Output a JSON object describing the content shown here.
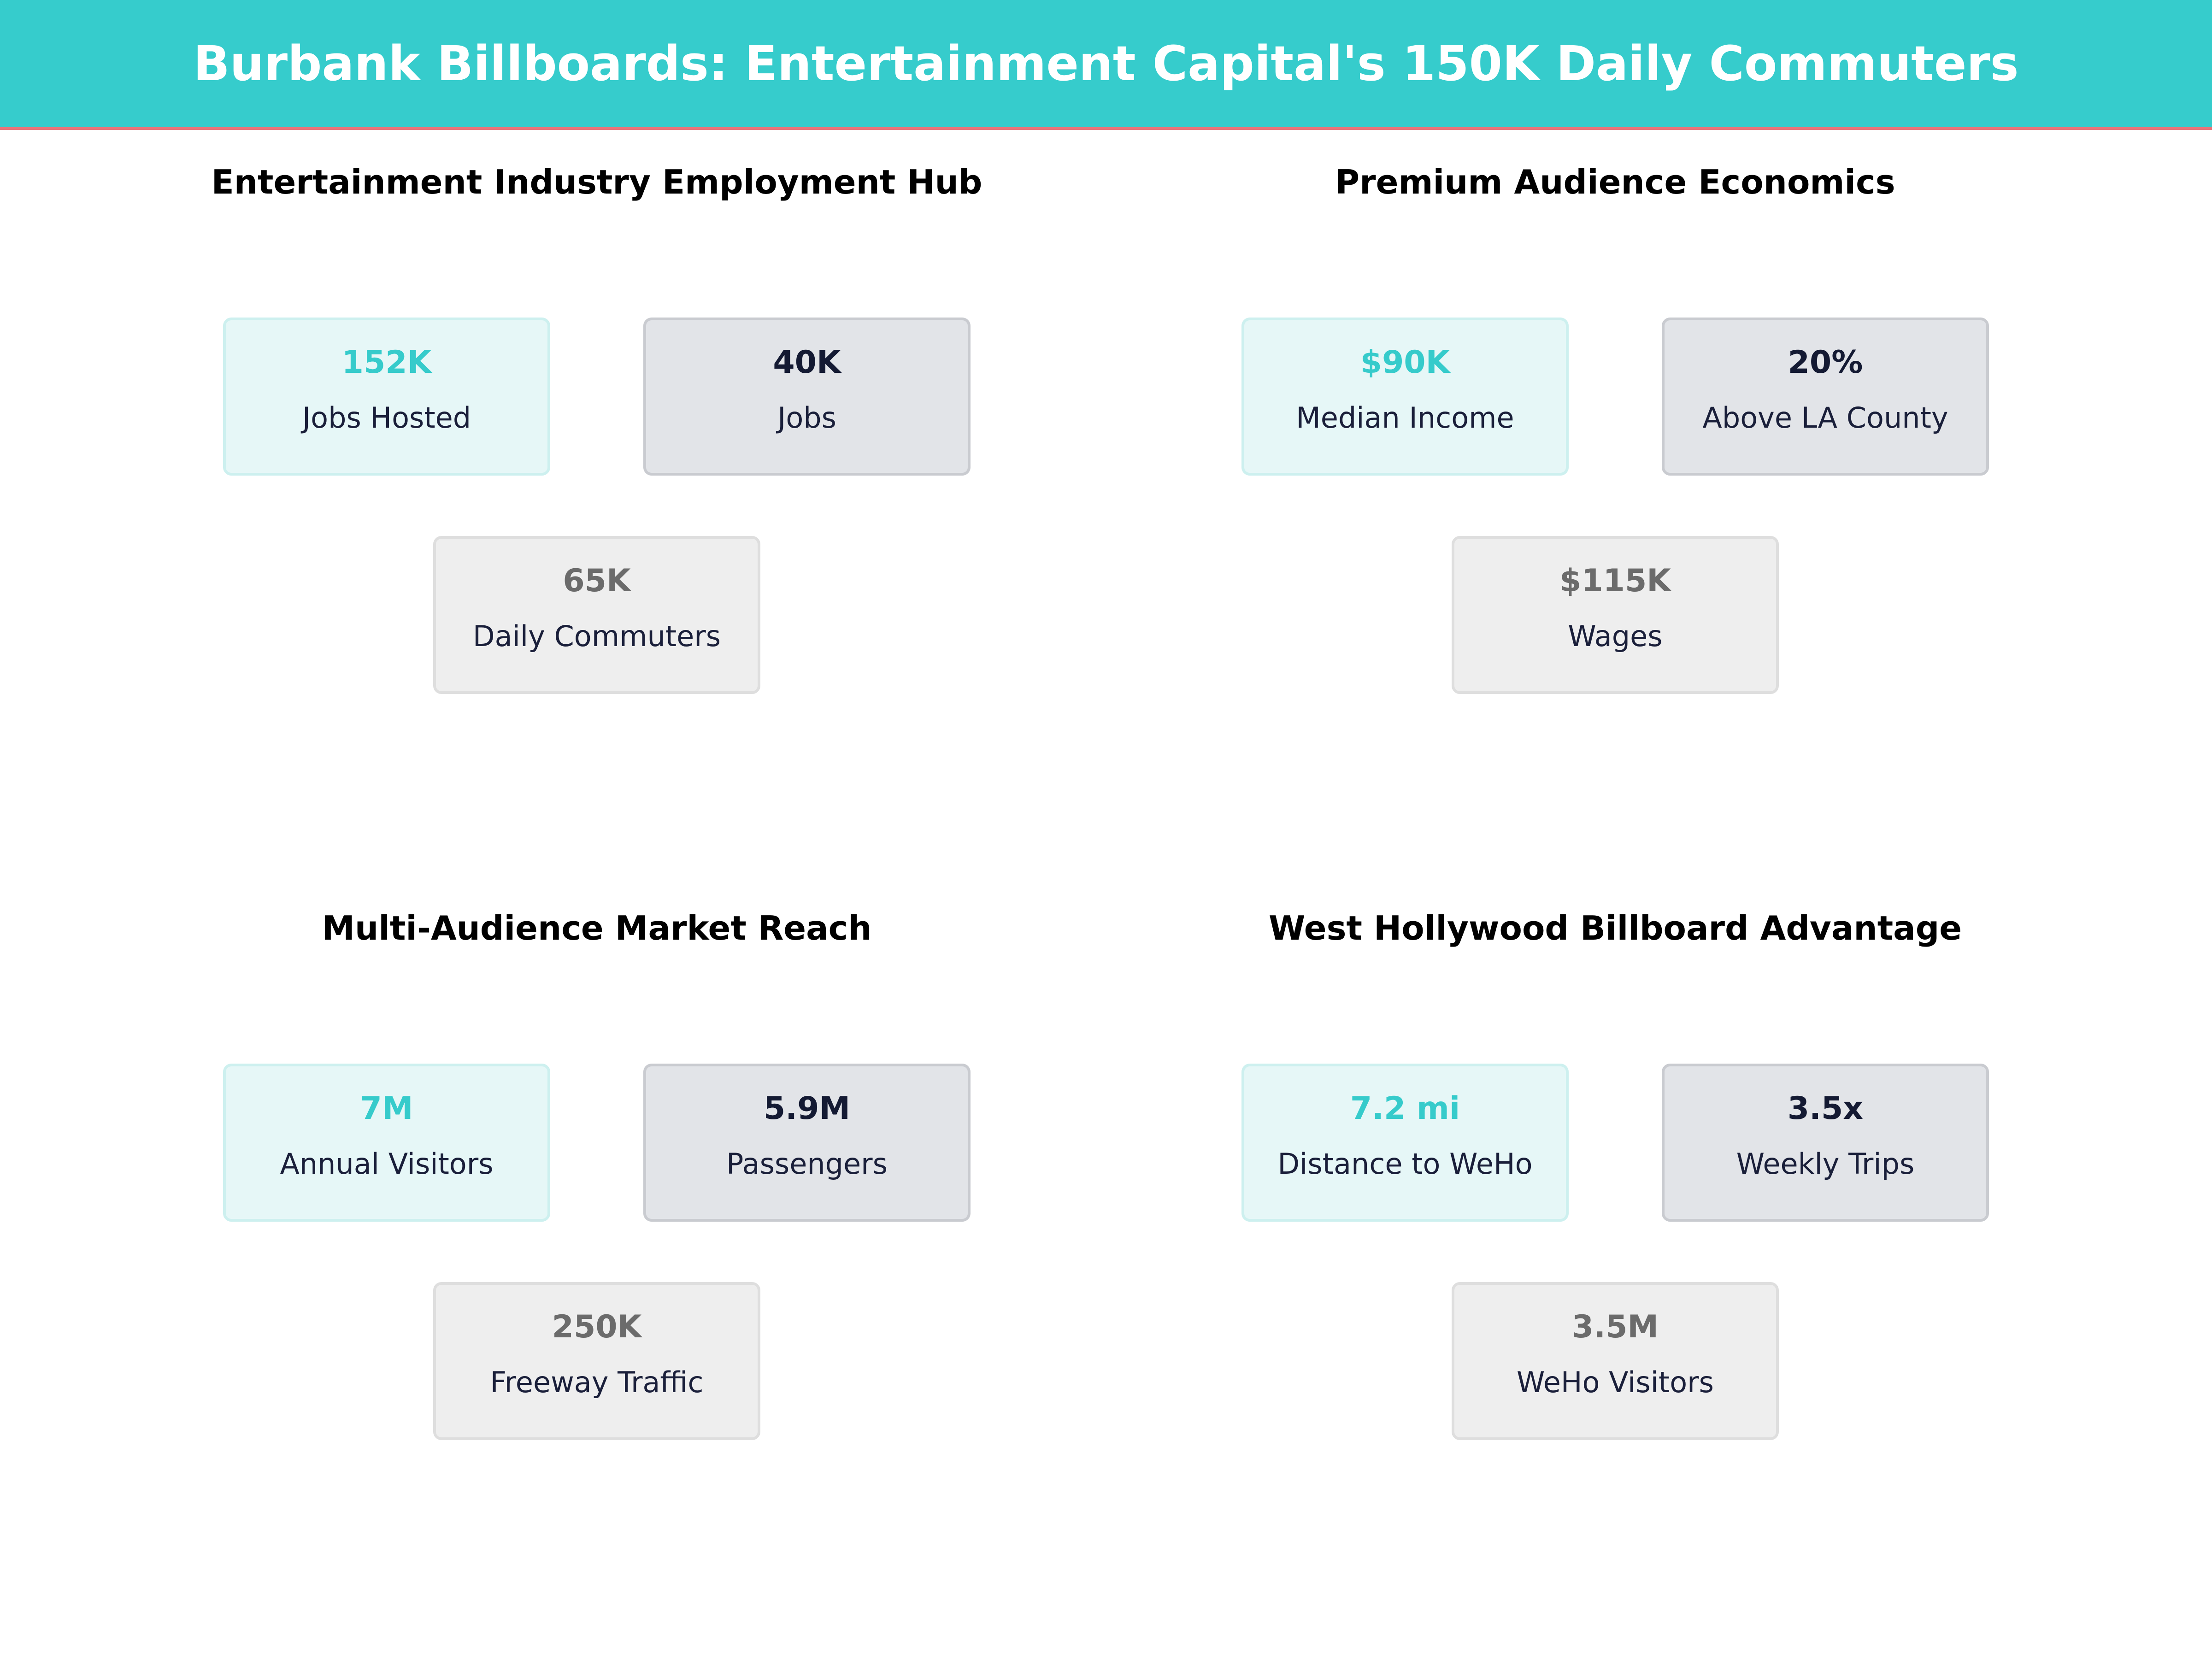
{
  "header": {
    "title": "Burbank Billboards: Entertainment Capital's 150K Daily Commuters"
  },
  "panels": [
    {
      "title": "Entertainment Industry Employment Hub",
      "cards": [
        {
          "value": "152K",
          "label": "Jobs Hosted"
        },
        {
          "value": "40K",
          "label": "Jobs"
        },
        {
          "value": "65K",
          "label": "Daily Commuters"
        }
      ]
    },
    {
      "title": "Premium Audience Economics",
      "cards": [
        {
          "value": "$90K",
          "label": "Median Income"
        },
        {
          "value": "20%",
          "label": "Above LA County"
        },
        {
          "value": "$115K",
          "label": "Wages"
        }
      ]
    },
    {
      "title": "Multi-Audience Market Reach",
      "cards": [
        {
          "value": "7M",
          "label": "Annual Visitors"
        },
        {
          "value": "5.9M",
          "label": "Passengers"
        },
        {
          "value": "250K",
          "label": "Freeway Traffic"
        }
      ]
    },
    {
      "title": "West Hollywood Billboard Advantage",
      "cards": [
        {
          "value": "7.2 mi",
          "label": "Distance to WeHo"
        },
        {
          "value": "3.5x",
          "label": "Weekly Trips"
        },
        {
          "value": "3.5M",
          "label": "WeHo Visitors"
        }
      ]
    }
  ]
}
